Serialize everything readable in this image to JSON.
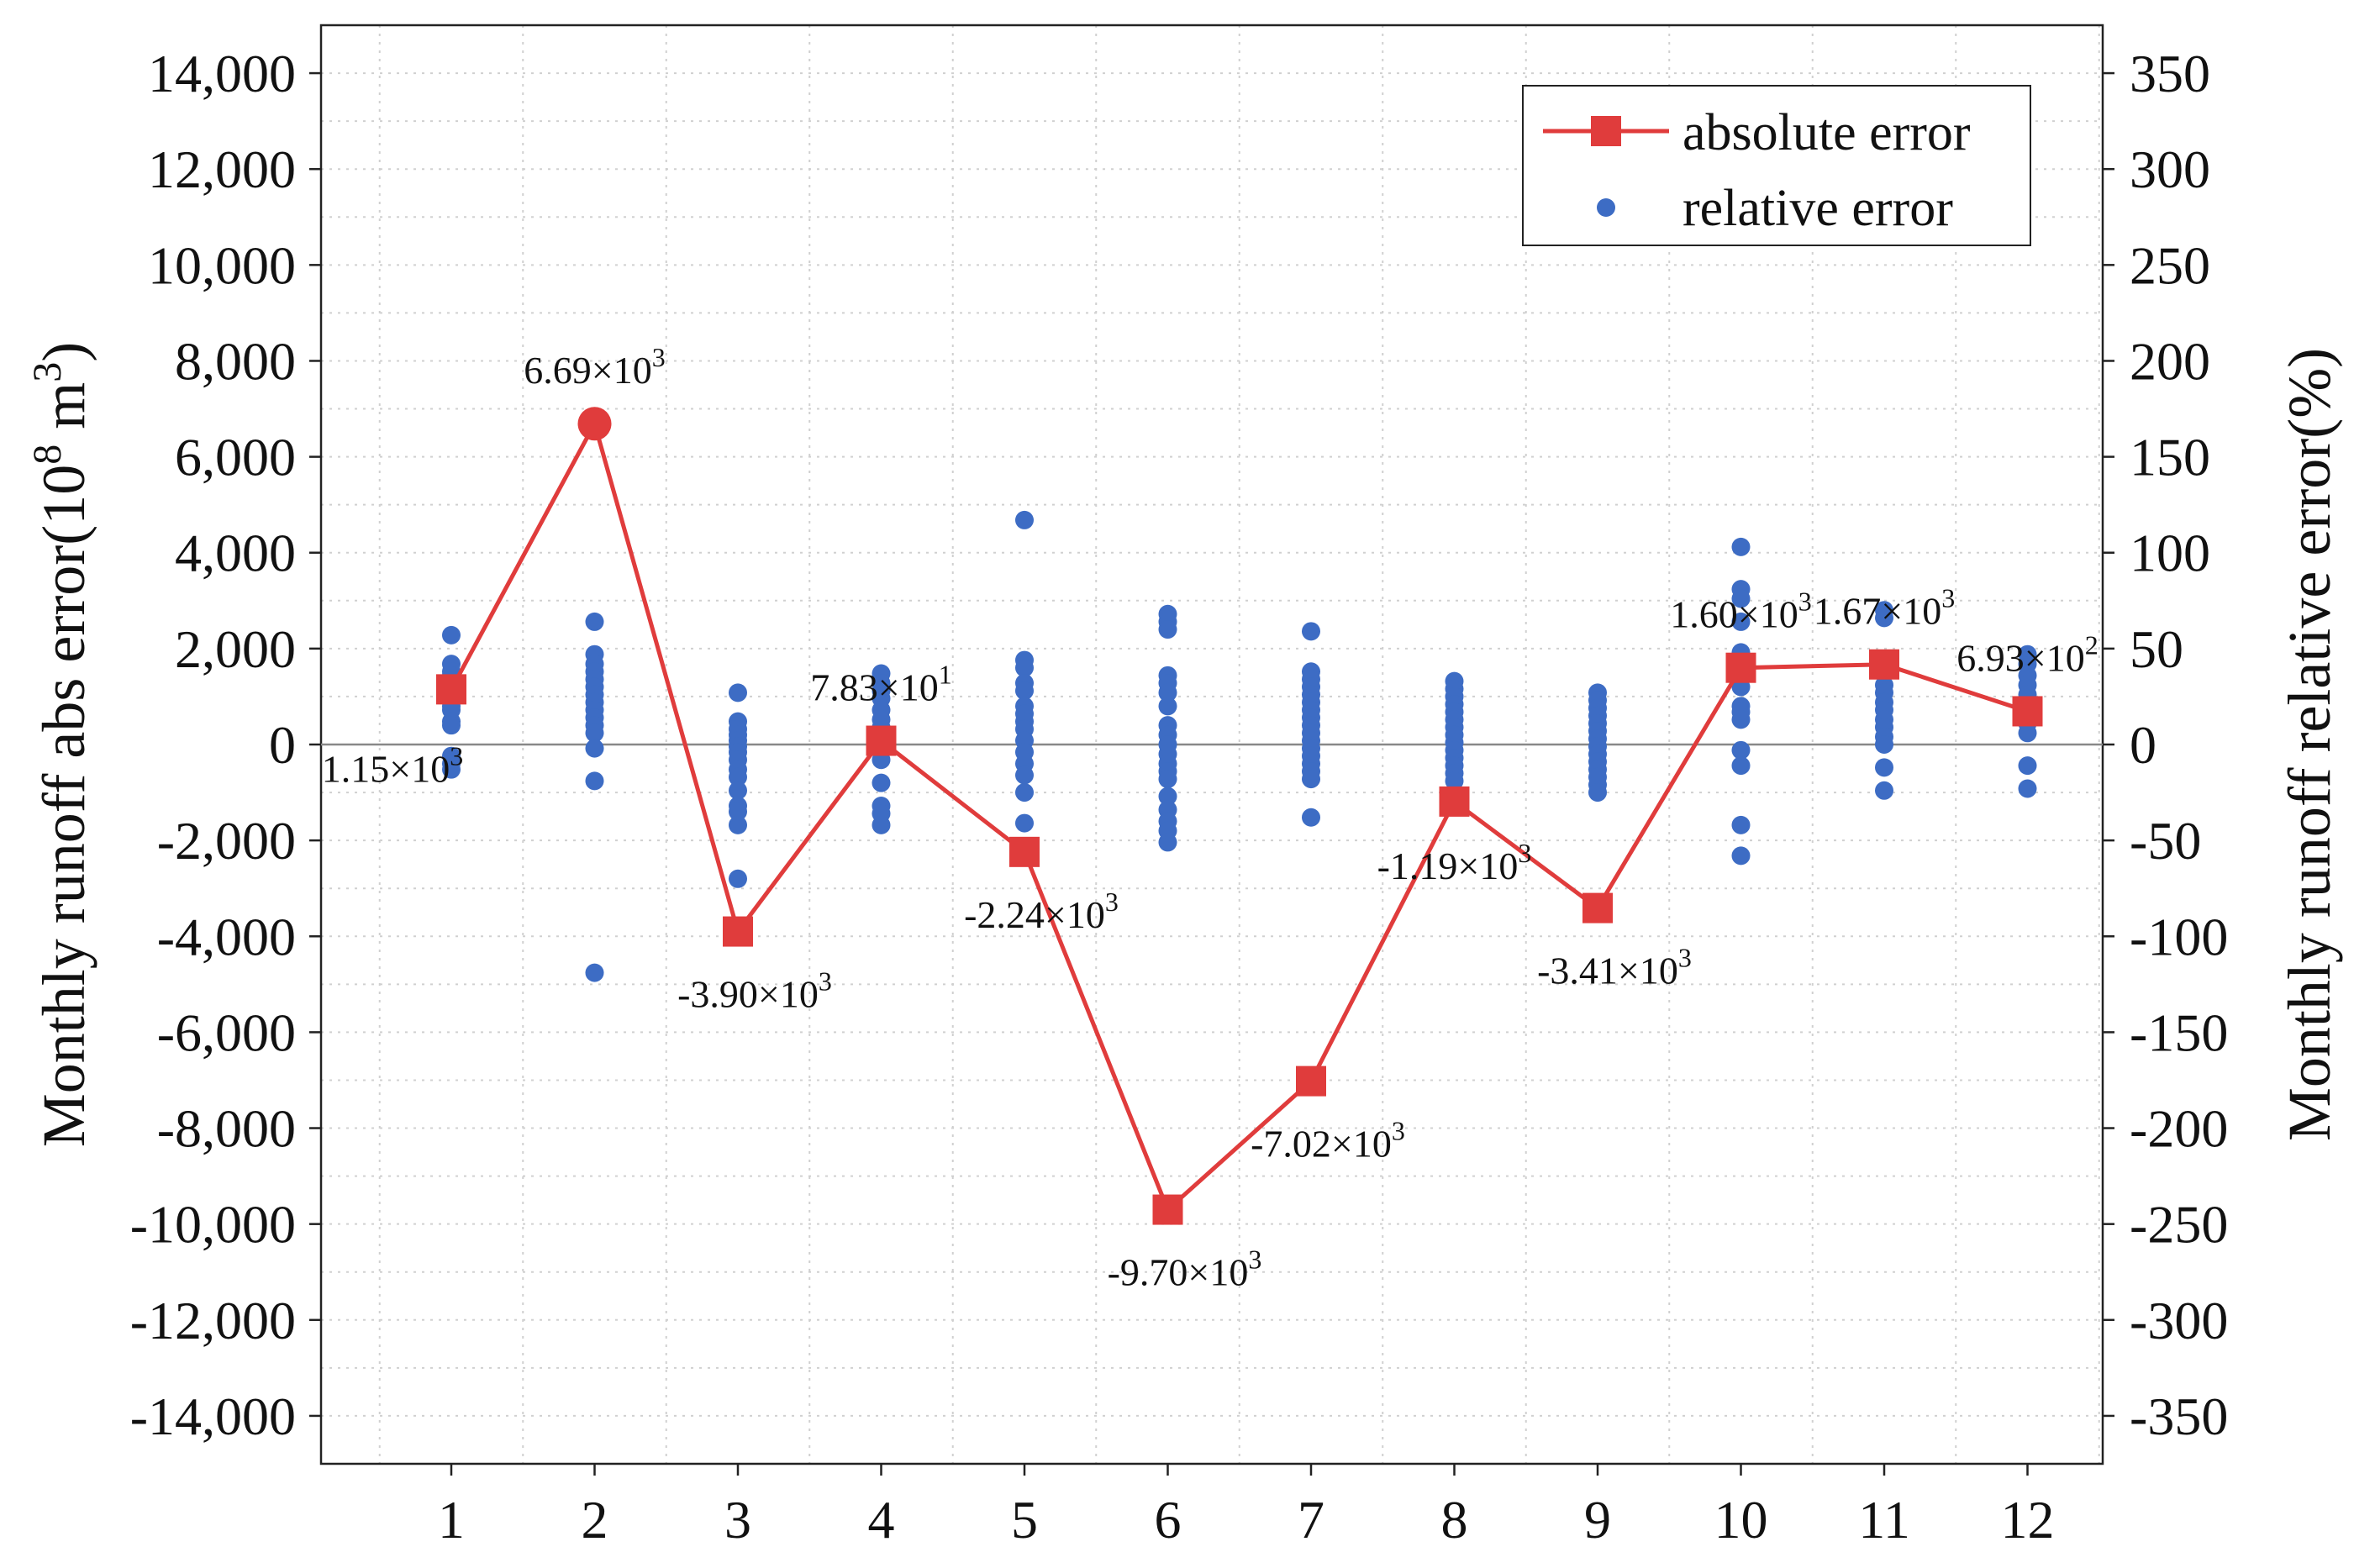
{
  "chart_data": {
    "type": "line+scatter",
    "title": "",
    "xlabel": "",
    "y_left_label": "Monthly runoff abs error(10",
    "y_left_label_sup": "8",
    "y_left_label_unit": " m",
    "y_left_label_unit_sup": "3",
    "y_left_label_close": ")",
    "y_right_label": "Monthly runoff relative error(%)",
    "x_categories": [
      1,
      2,
      3,
      4,
      5,
      6,
      7,
      8,
      9,
      10,
      11,
      12
    ],
    "x_tick_labels": [
      "1",
      "2",
      "3",
      "4",
      "5",
      "6",
      "7",
      "8",
      "9",
      "10",
      "11",
      "12"
    ],
    "y_left_lim": [
      -15000,
      15000
    ],
    "y_left_ticks": [
      14000,
      12000,
      10000,
      8000,
      6000,
      4000,
      2000,
      0,
      -2000,
      -4000,
      -6000,
      -8000,
      -10000,
      -12000,
      -14000
    ],
    "y_left_tick_labels": [
      "14,000",
      "12,000",
      "10,000",
      "8,000",
      "6,000",
      "4,000",
      "2,000",
      "0",
      "-2,000",
      "-4,000",
      "-6,000",
      "-8,000",
      "-10,000",
      "-12,000",
      "-14,000"
    ],
    "y_right_lim": [
      -375,
      375
    ],
    "y_right_ticks": [
      350,
      300,
      250,
      200,
      150,
      100,
      50,
      0,
      -50,
      -100,
      -150,
      -200,
      -250,
      -300,
      -350
    ],
    "y_right_tick_labels": [
      "350",
      "300",
      "250",
      "200",
      "150",
      "100",
      "50",
      "0",
      "-50",
      "-100",
      "-150",
      "-200",
      "-250",
      "-300",
      "-350"
    ],
    "grid": true,
    "legend_position": "top-right",
    "colors": {
      "absolute": "#e03c3c",
      "relative": "#3d6cc4",
      "zero_line": "#888888",
      "grid": "#d0d0d0"
    },
    "series": [
      {
        "name": "absolute error",
        "kind": "line-square",
        "axis": "left",
        "values": [
          1150,
          6690,
          -3900,
          78.3,
          -2240,
          -9700,
          -7020,
          -1190,
          -3410,
          1600,
          1670,
          693
        ],
        "highlight_index": 1
      },
      {
        "name": "relative error",
        "kind": "scatter",
        "axis": "right",
        "points": [
          [
            1,
            57
          ],
          [
            1,
            42
          ],
          [
            1,
            38
          ],
          [
            1,
            36
          ],
          [
            1,
            33
          ],
          [
            1,
            30
          ],
          [
            1,
            28
          ],
          [
            1,
            26
          ],
          [
            1,
            24
          ],
          [
            1,
            20
          ],
          [
            1,
            18
          ],
          [
            1,
            12
          ],
          [
            1,
            10
          ],
          [
            1,
            -6
          ],
          [
            1,
            -10
          ],
          [
            1,
            -13
          ],
          [
            2,
            64
          ],
          [
            2,
            47
          ],
          [
            2,
            42
          ],
          [
            2,
            38
          ],
          [
            2,
            34
          ],
          [
            2,
            30
          ],
          [
            2,
            26
          ],
          [
            2,
            22
          ],
          [
            2,
            18
          ],
          [
            2,
            14
          ],
          [
            2,
            10
          ],
          [
            2,
            6
          ],
          [
            2,
            -2
          ],
          [
            2,
            -19
          ],
          [
            2,
            -119
          ],
          [
            3,
            27
          ],
          [
            3,
            12
          ],
          [
            3,
            8
          ],
          [
            3,
            5
          ],
          [
            3,
            2
          ],
          [
            3,
            -1
          ],
          [
            3,
            -4
          ],
          [
            3,
            -8
          ],
          [
            3,
            -13
          ],
          [
            3,
            -17
          ],
          [
            3,
            -24
          ],
          [
            3,
            -32
          ],
          [
            3,
            -35
          ],
          [
            3,
            -42
          ],
          [
            3,
            -70
          ],
          [
            4,
            37
          ],
          [
            4,
            32
          ],
          [
            4,
            28
          ],
          [
            4,
            24
          ],
          [
            4,
            18
          ],
          [
            4,
            13
          ],
          [
            4,
            9
          ],
          [
            4,
            4
          ],
          [
            4,
            0
          ],
          [
            4,
            -3
          ],
          [
            4,
            -8
          ],
          [
            4,
            -20
          ],
          [
            4,
            -32
          ],
          [
            4,
            -36
          ],
          [
            4,
            -42
          ],
          [
            5,
            117
          ],
          [
            5,
            44
          ],
          [
            5,
            40
          ],
          [
            5,
            32
          ],
          [
            5,
            28
          ],
          [
            5,
            20
          ],
          [
            5,
            16
          ],
          [
            5,
            12
          ],
          [
            5,
            8
          ],
          [
            5,
            2
          ],
          [
            5,
            -4
          ],
          [
            5,
            -10
          ],
          [
            5,
            -16
          ],
          [
            5,
            -25
          ],
          [
            5,
            -41
          ],
          [
            6,
            68
          ],
          [
            6,
            64
          ],
          [
            6,
            60
          ],
          [
            6,
            36
          ],
          [
            6,
            32
          ],
          [
            6,
            27
          ],
          [
            6,
            20
          ],
          [
            6,
            10
          ],
          [
            6,
            5
          ],
          [
            6,
            0
          ],
          [
            6,
            -5
          ],
          [
            6,
            -10
          ],
          [
            6,
            -14
          ],
          [
            6,
            -18
          ],
          [
            6,
            -27
          ],
          [
            6,
            -34
          ],
          [
            6,
            -40
          ],
          [
            6,
            -45
          ],
          [
            6,
            -51
          ],
          [
            7,
            59
          ],
          [
            7,
            38
          ],
          [
            7,
            34
          ],
          [
            7,
            30
          ],
          [
            7,
            26
          ],
          [
            7,
            22
          ],
          [
            7,
            18
          ],
          [
            7,
            14
          ],
          [
            7,
            10
          ],
          [
            7,
            6
          ],
          [
            7,
            2
          ],
          [
            7,
            -2
          ],
          [
            7,
            -6
          ],
          [
            7,
            -10
          ],
          [
            7,
            -14
          ],
          [
            7,
            -18
          ],
          [
            7,
            -38
          ],
          [
            8,
            33
          ],
          [
            8,
            29
          ],
          [
            8,
            25
          ],
          [
            8,
            21
          ],
          [
            8,
            17
          ],
          [
            8,
            13
          ],
          [
            8,
            9
          ],
          [
            8,
            5
          ],
          [
            8,
            1
          ],
          [
            8,
            -3
          ],
          [
            8,
            -7
          ],
          [
            8,
            -11
          ],
          [
            8,
            -15
          ],
          [
            8,
            -19
          ],
          [
            9,
            27
          ],
          [
            9,
            23
          ],
          [
            9,
            19
          ],
          [
            9,
            15
          ],
          [
            9,
            11
          ],
          [
            9,
            7
          ],
          [
            9,
            3
          ],
          [
            9,
            -1
          ],
          [
            9,
            -5
          ],
          [
            9,
            -9
          ],
          [
            9,
            -13
          ],
          [
            9,
            -17
          ],
          [
            9,
            -21
          ],
          [
            9,
            -25
          ],
          [
            10,
            103
          ],
          [
            10,
            81
          ],
          [
            10,
            76
          ],
          [
            10,
            64
          ],
          [
            10,
            48
          ],
          [
            10,
            40
          ],
          [
            10,
            35
          ],
          [
            10,
            30
          ],
          [
            10,
            20
          ],
          [
            10,
            17
          ],
          [
            10,
            13
          ],
          [
            10,
            -3
          ],
          [
            10,
            -11
          ],
          [
            10,
            -42
          ],
          [
            10,
            -58
          ],
          [
            11,
            70
          ],
          [
            11,
            66
          ],
          [
            11,
            40
          ],
          [
            11,
            31
          ],
          [
            11,
            27
          ],
          [
            11,
            22
          ],
          [
            11,
            18
          ],
          [
            11,
            13
          ],
          [
            11,
            9
          ],
          [
            11,
            4
          ],
          [
            11,
            0
          ],
          [
            11,
            -12
          ],
          [
            11,
            -24
          ],
          [
            12,
            47
          ],
          [
            12,
            42
          ],
          [
            12,
            36
          ],
          [
            12,
            31
          ],
          [
            12,
            26
          ],
          [
            12,
            21
          ],
          [
            12,
            16
          ],
          [
            12,
            11
          ],
          [
            12,
            6
          ],
          [
            12,
            -11
          ],
          [
            12,
            -23
          ]
        ]
      }
    ],
    "data_labels": [
      {
        "index": 0,
        "mantissa": "1.15×10",
        "exp": "3",
        "placement": "below-left"
      },
      {
        "index": 1,
        "mantissa": "6.69×10",
        "exp": "3",
        "placement": "above"
      },
      {
        "index": 2,
        "mantissa": "-3.90×10",
        "exp": "3",
        "placement": "below-right"
      },
      {
        "index": 3,
        "mantissa": "7.83×10",
        "exp": "1",
        "placement": "above"
      },
      {
        "index": 4,
        "mantissa": "-2.24×10",
        "exp": "3",
        "placement": "below-right"
      },
      {
        "index": 5,
        "mantissa": "-9.70×10",
        "exp": "3",
        "placement": "below-right"
      },
      {
        "index": 6,
        "mantissa": "-7.02×10",
        "exp": "3",
        "placement": "below-right"
      },
      {
        "index": 7,
        "mantissa": "-1.19×10",
        "exp": "3",
        "placement": "below"
      },
      {
        "index": 8,
        "mantissa": "-3.41×10",
        "exp": "3",
        "placement": "below-right"
      },
      {
        "index": 9,
        "mantissa": "1.60×10",
        "exp": "3",
        "placement": "above"
      },
      {
        "index": 10,
        "mantissa": "1.67×10",
        "exp": "3",
        "placement": "above"
      },
      {
        "index": 11,
        "mantissa": "6.93×10",
        "exp": "2",
        "placement": "above"
      }
    ],
    "legend": {
      "absolute_label": "absolute error",
      "relative_label": "relative error"
    }
  }
}
